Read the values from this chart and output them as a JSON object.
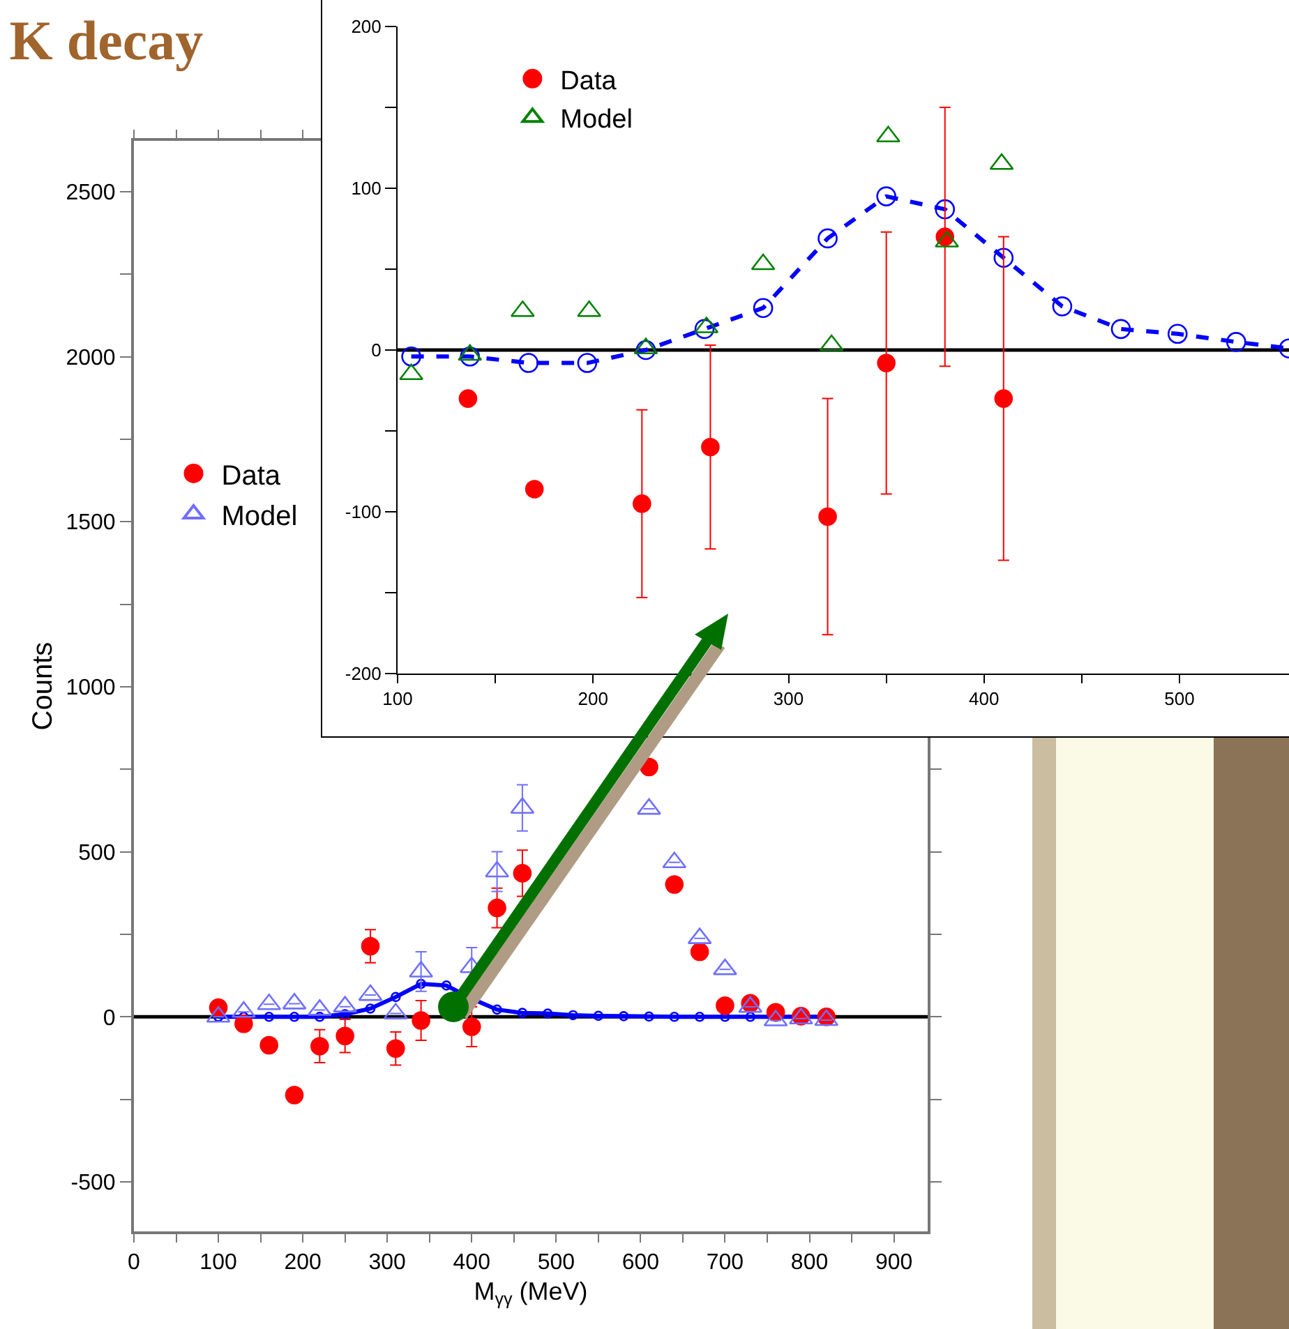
{
  "chart_data": [
    {
      "type": "scatter",
      "title": "K decay",
      "xlabel": "M$_{γγ}$ (MeV)",
      "ylabel": "Counts",
      "legend": "left",
      "xlim": [
        0,
        940
      ],
      "ylim": [
        -650,
        2654
      ],
      "xticks": [
        0,
        {
          "value": 50,
          "label": null
        },
        100,
        {
          "value": 150,
          "label": null
        },
        200,
        {
          "value": 250,
          "label": null
        },
        300,
        {
          "value": 350,
          "label": null
        },
        400,
        {
          "value": 450,
          "label": null
        },
        500,
        {
          "value": 550,
          "label": null
        },
        600,
        {
          "value": 650,
          "label": null
        },
        700,
        {
          "value": 750,
          "label": null
        },
        800,
        {
          "value": 850,
          "label": null
        },
        900
      ],
      "yticks": [
        -500,
        {
          "value": -250,
          "label": null
        },
        0,
        {
          "value": 250,
          "label": null
        },
        500,
        {
          "value": 750,
          "label": null
        },
        1000,
        {
          "value": 1250,
          "label": null
        },
        1500,
        {
          "value": 1750,
          "label": null
        },
        2000,
        {
          "value": 2250,
          "label": null
        },
        2500
      ],
      "x": [
        100,
        130,
        160,
        190,
        220,
        250,
        280,
        310,
        340,
        370,
        400,
        430,
        460,
        490,
        520,
        550,
        580,
        610,
        640,
        670,
        700,
        730,
        760,
        790,
        820
      ],
      "ref_lines": [
        {
          "axis": "y",
          "value": 0,
          "color": "#000000"
        }
      ],
      "series": [
        {
          "name": "Data",
          "marker": "circle",
          "color": "#ff0000",
          "values": [
            28,
            -21,
            -86,
            -237,
            -89,
            -58,
            214,
            -96,
            -11,
            null,
            -30,
            330,
            435,
            null,
            null,
            null,
            null,
            757,
            401,
            197,
            34,
            41,
            14,
            2,
            0
          ],
          "errors": [
            null,
            null,
            null,
            null,
            50,
            50,
            50,
            50,
            60,
            null,
            60,
            60,
            70,
            null,
            null,
            null,
            null,
            null,
            null,
            null,
            null,
            null,
            null,
            null,
            null
          ]
        },
        {
          "name": "Model",
          "marker": "triangle",
          "color": "#6f6fff",
          "values": [
            0,
            15,
            38,
            40,
            21,
            31,
            66,
            10,
            137,
            null,
            150,
            440,
            633,
            null,
            null,
            null,
            null,
            630,
            468,
            238,
            144,
            30,
            -11,
            -5,
            -10
          ],
          "errors": [
            null,
            null,
            null,
            null,
            null,
            null,
            null,
            null,
            60,
            null,
            60,
            60,
            70,
            null,
            null,
            null,
            null,
            null,
            null,
            null,
            null,
            null,
            null,
            null,
            null
          ]
        },
        {
          "type": "line",
          "marker": "circle",
          "line_style": "solid",
          "color": "#0000ff",
          "values": [
            0,
            0,
            0,
            0,
            0,
            8,
            25,
            60,
            100,
            95,
            55,
            22,
            12,
            10,
            5,
            3,
            2,
            1,
            0,
            0,
            0,
            0,
            0,
            0,
            0
          ]
        }
      ]
    },
    {
      "type": "scatter",
      "legend": "top left",
      "xlim": [
        100,
        556
      ],
      "ylim": [
        -200,
        200
      ],
      "xticks": [
        100,
        {
          "value": 150,
          "label": null
        },
        200,
        {
          "value": 250,
          "label": null
        },
        300,
        {
          "value": 350,
          "label": null
        },
        400,
        {
          "value": 450,
          "label": null
        },
        500
      ],
      "yticks": [
        -200,
        {
          "value": -150,
          "label": null
        },
        -100,
        {
          "value": -50,
          "label": null
        },
        0,
        {
          "value": 50,
          "label": null
        },
        100,
        {
          "value": 150,
          "label": null
        },
        200
      ],
      "ref_lines": [
        {
          "axis": "y",
          "value": 0,
          "color": "#000000"
        }
      ],
      "series": [
        {
          "type": "line",
          "marker": "circle",
          "line_style": "dashed",
          "color": "#0000ff",
          "x": [
            107,
            137,
            167,
            197,
            227,
            257,
            287,
            320,
            350,
            380,
            410,
            440,
            470,
            499,
            529,
            556
          ],
          "values": [
            -4,
            -4,
            -8,
            -8,
            0,
            13,
            26,
            69,
            95,
            87,
            57,
            27,
            13,
            10,
            5,
            1
          ]
        },
        {
          "name": "Data",
          "marker": "circle",
          "color": "#ff0000",
          "x": [
            136,
            170,
            225,
            260,
            320,
            350,
            380,
            410
          ],
          "values": [
            -30,
            -86,
            -95,
            -60,
            -103,
            -8,
            70,
            -30
          ],
          "errors": [
            null,
            null,
            58,
            63,
            73,
            81,
            80,
            100
          ]
        },
        {
          "name": "Model",
          "marker": "triangle",
          "color": "#008000",
          "x": [
            107,
            137,
            164,
            198,
            227,
            258,
            287,
            322,
            351,
            381,
            409
          ],
          "values": [
            -15,
            -3,
            24,
            24,
            1,
            14,
            53,
            3,
            132,
            67,
            115
          ]
        }
      ]
    }
  ]
}
